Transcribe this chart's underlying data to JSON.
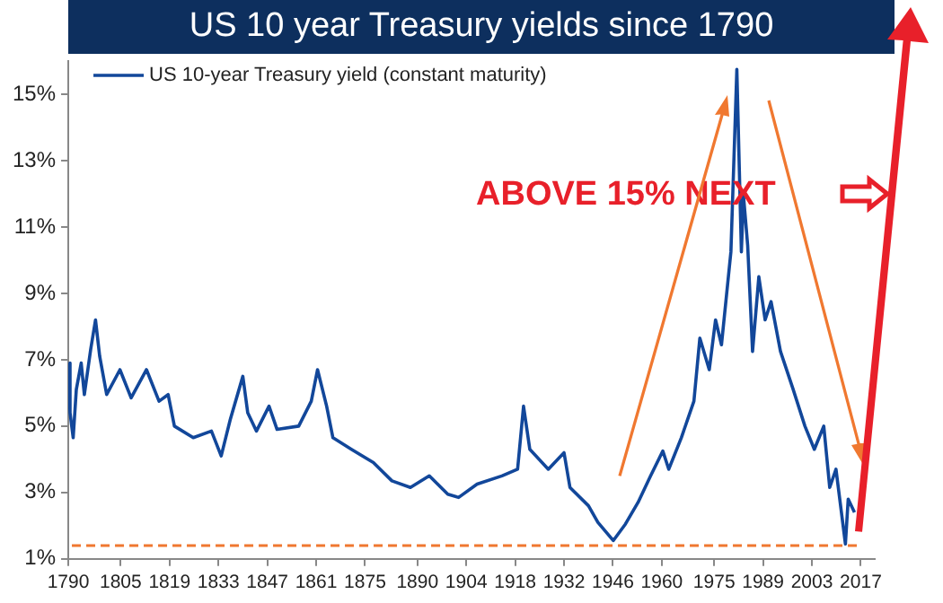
{
  "chart_data": {
    "type": "line",
    "title": "US 10 year Treasury yields since 1790",
    "annotations": [
      "ABOVE 15% NEXT"
    ],
    "x": [
      1790,
      1790.5,
      1791.4,
      1792.3,
      1793.7,
      1794.6,
      1796.4,
      1797.8,
      1799,
      1801,
      1804.8,
      1808,
      1812.4,
      1816,
      1818.6,
      1820.4,
      1825.8,
      1831,
      1833.8,
      1836.4,
      1840,
      1841.4,
      1843.9,
      1847.5,
      1849.8,
      1856,
      1859.6,
      1861.4,
      1864,
      1865.8,
      1871.1,
      1877.4,
      1882.7,
      1888,
      1893.4,
      1898.7,
      1901.8,
      1907.1,
      1914.2,
      1918.7,
      1920.4,
      1922.2,
      1927.5,
      1932,
      1933.7,
      1939,
      1941.7,
      1946.1,
      1949.6,
      1953.2,
      1956.8,
      1960.3,
      1962,
      1965.6,
      1969.2,
      1970.9,
      1973.6,
      1975.4,
      1977.1,
      1979.8,
      1981.5,
      1982.8,
      1983.4,
      1984.6,
      1986,
      1987.8,
      1989.6,
      1991.3,
      1994,
      1997.5,
      2001,
      2003.7,
      2006.4,
      2008.1,
      2009.9,
      2012.6,
      2013.4,
      2015.2
    ],
    "series": [
      {
        "name": "US 10-year Treasury yield (constant maturity)",
        "color": "#12479a",
        "values": [
          6.9,
          5.4,
          4.65,
          6.1,
          6.9,
          5.95,
          7.3,
          8.2,
          7.1,
          5.95,
          6.7,
          5.85,
          6.7,
          5.75,
          5.95,
          5.0,
          4.65,
          4.85,
          4.1,
          5.2,
          6.5,
          5.4,
          4.85,
          5.6,
          4.9,
          5.0,
          5.75,
          6.7,
          5.6,
          4.65,
          4.3,
          3.9,
          3.35,
          3.15,
          3.5,
          2.95,
          2.85,
          3.25,
          3.5,
          3.7,
          5.6,
          4.3,
          3.7,
          4.2,
          3.15,
          2.6,
          2.1,
          1.55,
          2.05,
          2.7,
          3.5,
          4.25,
          3.7,
          4.65,
          5.75,
          7.65,
          6.7,
          8.2,
          7.45,
          10.25,
          15.75,
          10.25,
          11.95,
          10.45,
          7.25,
          9.5,
          8.2,
          8.75,
          7.25,
          6.15,
          5.0,
          4.3,
          5.0,
          3.15,
          3.7,
          1.45,
          2.8,
          2.4
        ]
      }
    ],
    "xlim": [
      1790,
      2021
    ],
    "xticks": [
      1790,
      1805,
      1819,
      1833,
      1847,
      1861,
      1875,
      1890,
      1904,
      1918,
      1932,
      1946,
      1960,
      1975,
      1989,
      2003,
      2017
    ],
    "ylim": [
      1,
      16
    ],
    "yticks": [
      {
        "value": 1,
        "label": "1%"
      },
      {
        "value": 3,
        "label": "3%"
      },
      {
        "value": 5,
        "label": "5%"
      },
      {
        "value": 7,
        "label": "7%"
      },
      {
        "value": 9,
        "label": "9%"
      },
      {
        "value": 11,
        "label": "11%"
      },
      {
        "value": 13,
        "label": "13%"
      },
      {
        "value": 15,
        "label": "15%"
      }
    ],
    "ref_lines": [
      {
        "axis": "y",
        "value": 1.4,
        "color": "#f07830",
        "line_style": "dashed"
      }
    ],
    "legend": "top left",
    "grid": false,
    "marker": "none",
    "line_style": "solid"
  }
}
